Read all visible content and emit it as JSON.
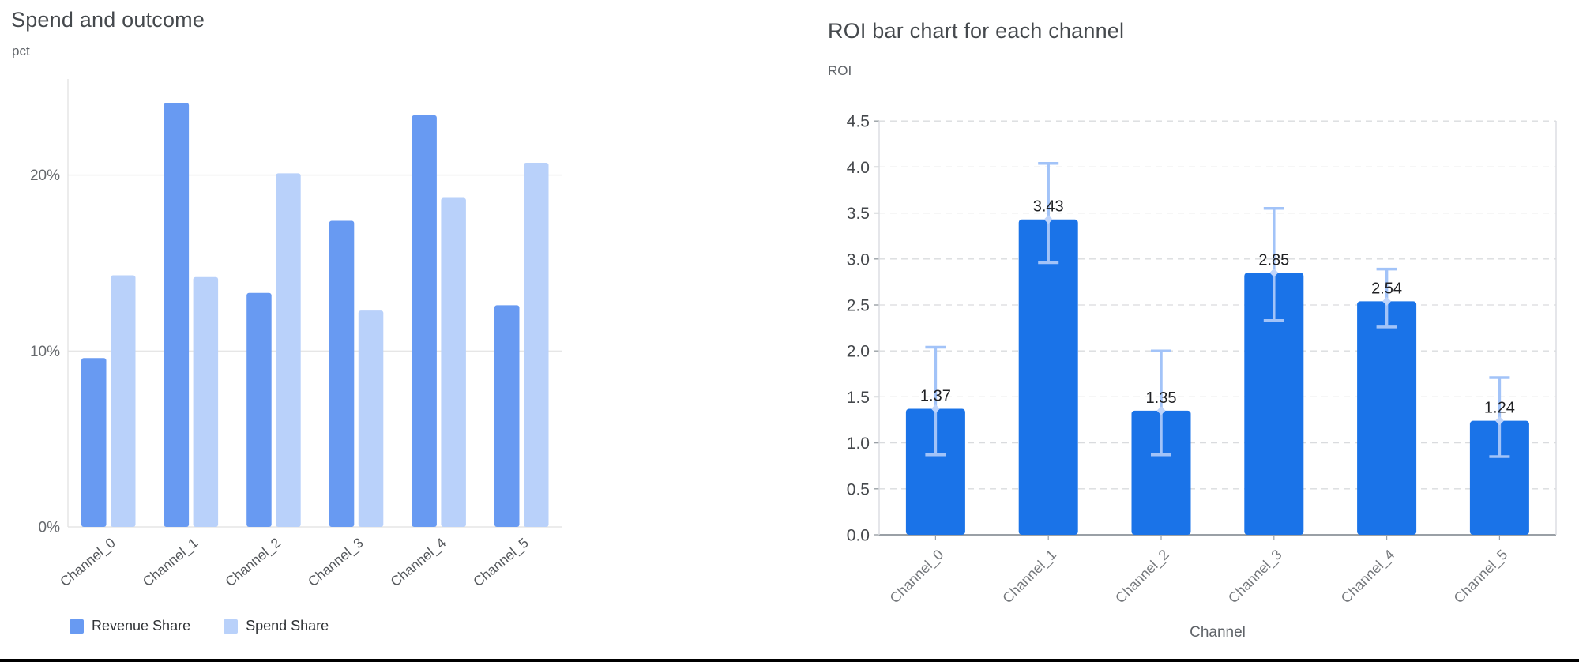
{
  "page": {
    "background": "#ffffff",
    "bottom_bar_color": "#000000"
  },
  "chart_data": [
    {
      "type": "bar",
      "title": "Spend and outcome",
      "unit_label": "pct",
      "categories": [
        "Channel_0",
        "Channel_1",
        "Channel_2",
        "Channel_3",
        "Channel_4",
        "Channel_5"
      ],
      "series": [
        {
          "name": "Revenue Share",
          "color": "#689af2",
          "values": [
            9.6,
            24.1,
            13.3,
            17.4,
            23.4,
            12.6
          ]
        },
        {
          "name": "Spend Share",
          "color": "#b9d1fa",
          "values": [
            14.3,
            14.2,
            20.1,
            12.3,
            18.7,
            20.7
          ]
        }
      ],
      "yticks": [
        {
          "value": 0,
          "label": "0%"
        },
        {
          "value": 10,
          "label": "10%"
        },
        {
          "value": 20,
          "label": "20%"
        }
      ],
      "ylim": [
        0,
        25.5
      ],
      "grid": "horizontal-solid",
      "legend_position": "bottom-left"
    },
    {
      "type": "bar",
      "title": "ROI bar chart for each channel",
      "unit_label": "ROI",
      "xlabel": "Channel",
      "categories": [
        "Channel_0",
        "Channel_1",
        "Channel_2",
        "Channel_3",
        "Channel_4",
        "Channel_5"
      ],
      "values": [
        1.37,
        3.43,
        1.35,
        2.85,
        2.54,
        1.24
      ],
      "value_labels": [
        "1.37",
        "3.43",
        "1.35",
        "2.85",
        "2.54",
        "1.24"
      ],
      "error_low": [
        0.87,
        2.96,
        0.87,
        2.33,
        2.26,
        0.85
      ],
      "error_high": [
        2.04,
        4.04,
        2.0,
        3.55,
        2.89,
        1.71
      ],
      "bar_color": "#1a73e8",
      "error_bar_color": "#a2c3f8",
      "error_marker_color": "#bed4fb",
      "yticks": [
        0,
        0.5,
        1,
        1.5,
        2,
        2.5,
        3,
        3.5,
        4,
        4.5
      ],
      "ytick_labels": [
        "0.0",
        "0.5",
        "1.0",
        "1.5",
        "2.0",
        "2.5",
        "3.0",
        "3.5",
        "4.0",
        "4.5"
      ],
      "ylim": [
        0,
        4.5
      ],
      "grid": "horizontal-dashed",
      "legend_position": "none"
    }
  ]
}
